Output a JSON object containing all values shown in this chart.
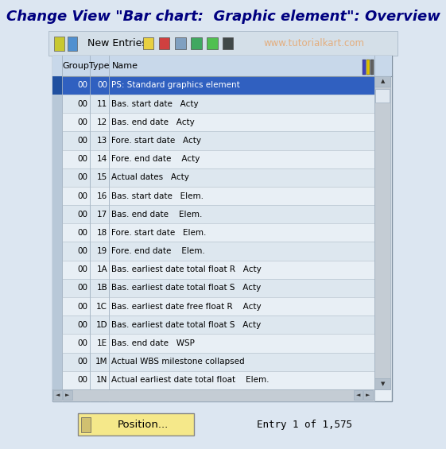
{
  "title": "Change View \"Bar chart:  Graphic element\": Overview",
  "toolbar_text": "New Entries",
  "watermark": "www.tutorialkart.com",
  "bg_color": "#dce6f1",
  "header_bg": "#c8d8ea",
  "row_selected_bg": "#3060c0",
  "border_color": "#a0b0c0",
  "table_border": "#8090a0",
  "col_headers": [
    "Group",
    "Type",
    "Name"
  ],
  "rows": [
    {
      "group": "00",
      "type": "00",
      "name": "PS: Standard graphics element",
      "extra": "",
      "selected": true
    },
    {
      "group": "00",
      "type": "11",
      "name": "Bas. start date",
      "extra": "Acty",
      "selected": false
    },
    {
      "group": "00",
      "type": "12",
      "name": "Bas. end date",
      "extra": "Acty",
      "selected": false
    },
    {
      "group": "00",
      "type": "13",
      "name": "Fore. start date",
      "extra": "Acty",
      "selected": false
    },
    {
      "group": "00",
      "type": "14",
      "name": "Fore. end date",
      "extra": " Acty",
      "selected": false
    },
    {
      "group": "00",
      "type": "15",
      "name": "Actual dates",
      "extra": "Acty",
      "selected": false
    },
    {
      "group": "00",
      "type": "16",
      "name": "Bas. start date",
      "extra": "Elem.",
      "selected": false
    },
    {
      "group": "00",
      "type": "17",
      "name": "Bas. end date",
      "extra": " Elem.",
      "selected": false
    },
    {
      "group": "00",
      "type": "18",
      "name": "Fore. start date",
      "extra": "Elem.",
      "selected": false
    },
    {
      "group": "00",
      "type": "19",
      "name": "Fore. end date",
      "extra": " Elem.",
      "selected": false
    },
    {
      "group": "00",
      "type": "1A",
      "name": "Bas. earliest date total float R",
      "extra": "Acty",
      "selected": false
    },
    {
      "group": "00",
      "type": "1B",
      "name": "Bas. earliest date total float S",
      "extra": "Acty",
      "selected": false
    },
    {
      "group": "00",
      "type": "1C",
      "name": "Bas. earliest date free float R",
      "extra": " Acty",
      "selected": false
    },
    {
      "group": "00",
      "type": "1D",
      "name": "Bas. earliest date total float S",
      "extra": "Acty",
      "selected": false
    },
    {
      "group": "00",
      "type": "1E",
      "name": "Bas. end date",
      "extra": "WSP",
      "selected": false
    },
    {
      "group": "00",
      "type": "1M",
      "name": "Actual WBS milestone collapsed",
      "extra": "",
      "selected": false
    },
    {
      "group": "00",
      "type": "1N",
      "name": "Actual earliest date total float",
      "extra": " Elem.",
      "selected": false
    }
  ],
  "footer_button": "Position...",
  "footer_text": "Entry 1 of 1,575",
  "title_color": "#000080",
  "title_fontsize": 13,
  "button_bg": "#f5e88a",
  "button_border": "#888888"
}
